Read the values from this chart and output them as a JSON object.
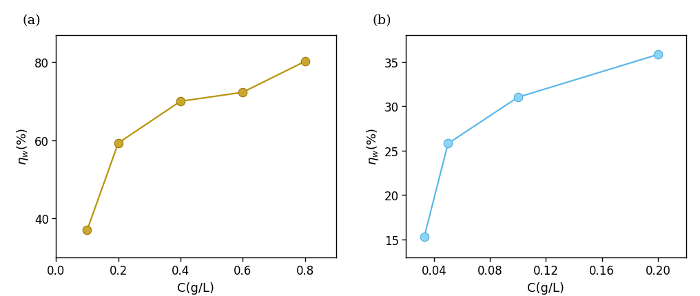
{
  "panel_a": {
    "x": [
      0.1,
      0.2,
      0.4,
      0.6,
      0.8
    ],
    "y": [
      37.0,
      59.3,
      70.0,
      72.3,
      80.2
    ],
    "line_color": "#B8940A",
    "marker_face_color": "#C9A832",
    "marker_edge_color": "#A07808",
    "xlabel": "C(g/L)",
    "xlim": [
      0.0,
      0.9
    ],
    "ylim": [
      30,
      87
    ],
    "xticks": [
      0.0,
      0.2,
      0.4,
      0.6,
      0.8
    ],
    "yticks": [
      40,
      60,
      80
    ],
    "label": "(a)"
  },
  "panel_b": {
    "x": [
      0.033,
      0.05,
      0.1,
      0.2
    ],
    "y": [
      15.3,
      25.8,
      31.0,
      35.8
    ],
    "line_color": "#5BB8E8",
    "marker_face_color": "#8DD4F5",
    "marker_edge_color": "#4AAAD8",
    "xlabel": "C(g/L)",
    "xlim": [
      0.02,
      0.22
    ],
    "ylim": [
      13,
      38
    ],
    "xticks": [
      0.04,
      0.08,
      0.12,
      0.16,
      0.2
    ],
    "yticks": [
      15,
      20,
      25,
      30,
      35
    ],
    "label": "(b)"
  },
  "background_color": "#ffffff",
  "font_size": 13,
  "marker_size": 9,
  "linewidth": 1.6
}
